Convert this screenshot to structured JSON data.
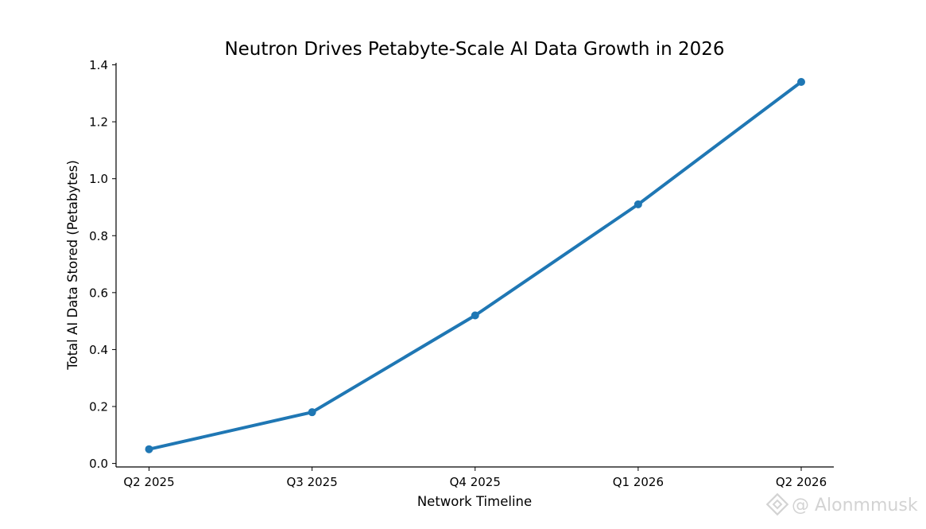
{
  "chart_data": {
    "type": "line",
    "title": "Neutron Drives Petabyte-Scale AI Data Growth in 2026",
    "xlabel": "Network Timeline",
    "ylabel": "Total AI Data Stored (Petabytes)",
    "categories": [
      "Q2 2025",
      "Q3 2025",
      "Q4 2025",
      "Q1 2026",
      "Q2 2026"
    ],
    "series": [
      {
        "name": "Total AI Data Stored",
        "values": [
          0.05,
          0.18,
          0.52,
          0.91,
          1.34
        ],
        "color": "#1f77b4"
      }
    ],
    "ylim": [
      0,
      1.4
    ],
    "yticks": [
      0.0,
      0.2,
      0.4,
      0.6,
      0.8,
      1.0,
      1.2,
      1.4
    ],
    "ytick_labels": [
      "0.0",
      "0.2",
      "0.4",
      "0.6",
      "0.8",
      "1.0",
      "1.2",
      "1.4"
    ],
    "grid": false,
    "legend": "none"
  },
  "watermark": {
    "text": "@ Alonmmusk",
    "icon": "binance-logo-icon"
  }
}
